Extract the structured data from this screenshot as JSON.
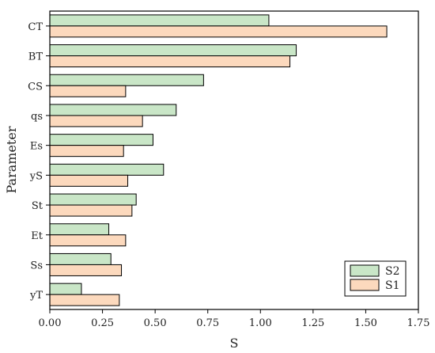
{
  "chart_data": {
    "type": "bar",
    "orientation": "horizontal",
    "categories": [
      "CT",
      "BT",
      "CS",
      "qs",
      "Es",
      "yS",
      "St",
      "Et",
      "Ss",
      "yT"
    ],
    "series": [
      {
        "name": "S2",
        "color": "#c9e6c7",
        "values": [
          1.04,
          1.17,
          0.73,
          0.6,
          0.49,
          0.54,
          0.41,
          0.28,
          0.29,
          0.15
        ]
      },
      {
        "name": "S1",
        "color": "#fcd9bd",
        "values": [
          1.6,
          1.14,
          0.36,
          0.44,
          0.35,
          0.37,
          0.39,
          0.36,
          0.34,
          0.33
        ]
      }
    ],
    "xlabel": "S",
    "ylabel": "Parameter",
    "xlim": [
      0,
      1.75
    ],
    "xticks": [
      "0.00",
      "0.25",
      "0.50",
      "0.75",
      "1.00",
      "1.25",
      "1.50",
      "1.75"
    ],
    "grid": false,
    "legend_position": "bottom-right"
  }
}
